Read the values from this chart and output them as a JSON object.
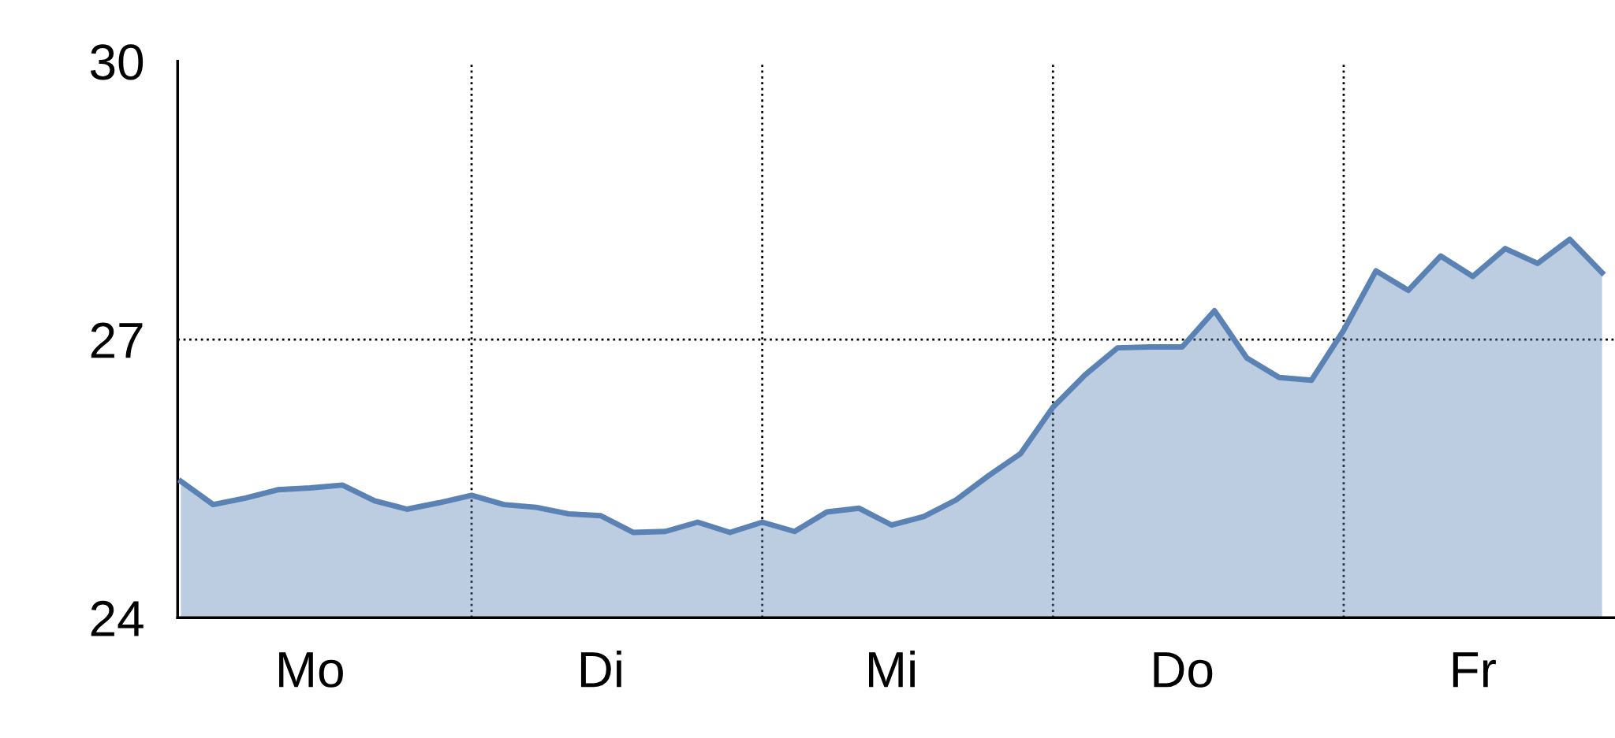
{
  "chart_data": {
    "type": "area",
    "categories": [
      null,
      null,
      null,
      null,
      "Mo",
      null,
      null,
      null,
      null,
      null,
      null,
      null,
      null,
      "Di",
      null,
      null,
      null,
      null,
      null,
      null,
      null,
      null,
      "Mi",
      null,
      null,
      null,
      null,
      null,
      null,
      null,
      null,
      "Do",
      null,
      null,
      null,
      null,
      null,
      null,
      null,
      null,
      "Fr",
      null,
      null,
      null,
      null
    ],
    "series": [
      {
        "color": "#5a82b4",
        "values": [
          25.47,
          25.22,
          25.29,
          25.38,
          25.4,
          25.43,
          25.26,
          25.17,
          25.24,
          25.32,
          25.22,
          25.19,
          25.12,
          25.1,
          24.92,
          24.93,
          25.03,
          24.92,
          25.03,
          24.93,
          25.14,
          25.18,
          25.0,
          25.09,
          25.27,
          25.53,
          25.77,
          26.27,
          26.62,
          26.91,
          26.92,
          26.92,
          27.31,
          26.8,
          26.59,
          26.56,
          27.1,
          27.74,
          27.53,
          27.9,
          27.68,
          27.98,
          27.82,
          28.08,
          27.72
        ]
      }
    ],
    "ylim": [
      24,
      30
    ],
    "yticks": [
      24,
      27,
      30
    ],
    "grid": true
  }
}
